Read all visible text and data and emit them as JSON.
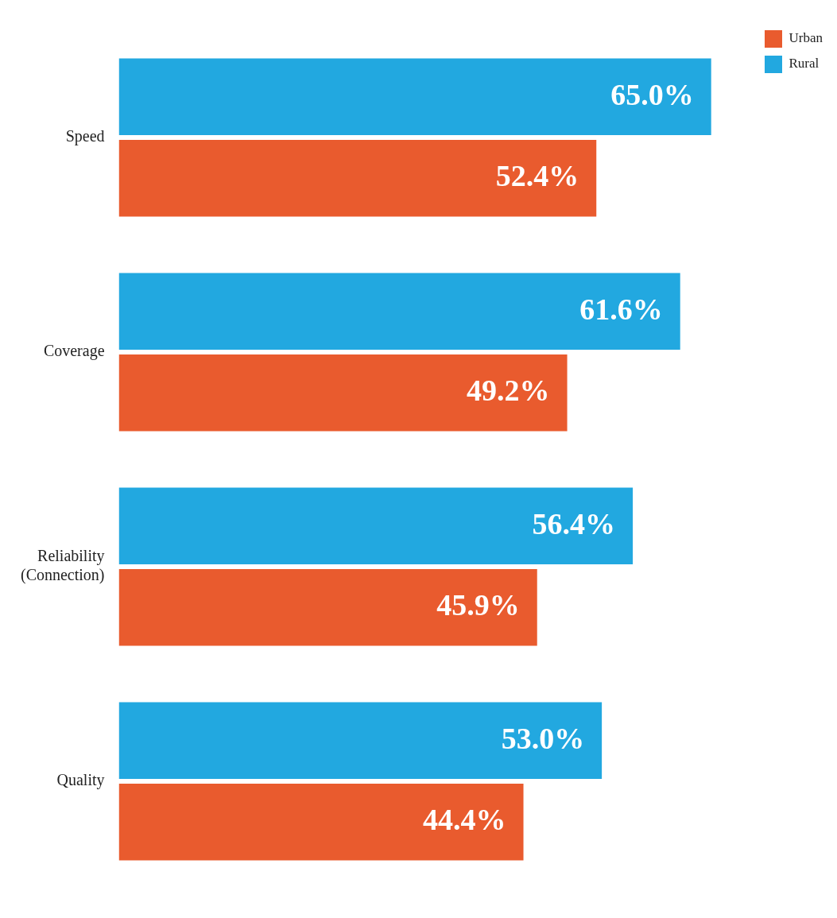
{
  "chart_data": {
    "type": "bar",
    "orientation": "horizontal",
    "categories": [
      "Speed",
      "Coverage",
      "Reliability (Connection)",
      "Quality"
    ],
    "series": [
      {
        "name": "Rural",
        "color": "#22a8e0",
        "values": [
          65.0,
          61.6,
          56.4,
          53.0
        ],
        "value_labels": [
          "65.0%",
          "61.6%",
          "56.4%",
          "53.0%"
        ]
      },
      {
        "name": "Urban",
        "color": "#e95b2e",
        "values": [
          52.4,
          49.2,
          45.9,
          44.4
        ],
        "value_labels": [
          "52.4%",
          "49.2%",
          "45.9%",
          "44.4%"
        ]
      }
    ],
    "legend": "top right",
    "grid": false
  }
}
